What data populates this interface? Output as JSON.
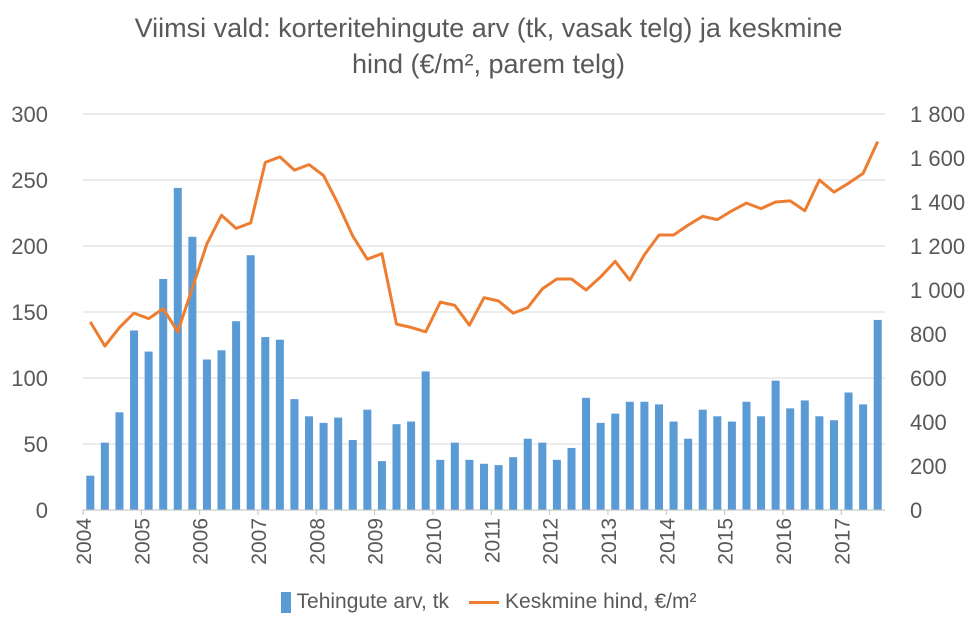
{
  "chart_data": {
    "type": "bar+line",
    "title_line1": "Viimsi vald: korteritehingute arv (tk, vasak telg) ja keskmine",
    "title_line2": "hind (€/m², parem telg)",
    "x_tick_labels": [
      "2004",
      "2005",
      "2006",
      "2007",
      "2008",
      "2009",
      "2010",
      "2011",
      "2012",
      "2013",
      "2014",
      "2015",
      "2016",
      "2017"
    ],
    "y_left": {
      "ticks": [
        0,
        50,
        100,
        150,
        200,
        250,
        300
      ],
      "tick_labels": [
        "0",
        "50",
        "100",
        "150",
        "200",
        "250",
        "300"
      ],
      "lim": [
        0,
        300
      ]
    },
    "y_right": {
      "ticks": [
        0,
        200,
        400,
        600,
        800,
        1000,
        1200,
        1400,
        1600,
        1800
      ],
      "tick_labels": [
        "0",
        "200",
        "400",
        "600",
        "800",
        "1 000",
        "1 200",
        "1 400",
        "1 600",
        "1 800"
      ],
      "lim": [
        0,
        1800
      ]
    },
    "quarters_start": "2004 Q1",
    "series": [
      {
        "name": "Tehingute arv, tk",
        "type": "bar",
        "axis": "left",
        "color": "#5b9bd5",
        "values": [
          26,
          51,
          74,
          136,
          120,
          175,
          244,
          207,
          114,
          121,
          143,
          193,
          131,
          129,
          84,
          71,
          66,
          70,
          53,
          76,
          37,
          65,
          67,
          105,
          38,
          51,
          38,
          35,
          34,
          40,
          54,
          51,
          38,
          47,
          85,
          66,
          73,
          82,
          82,
          80,
          67,
          54,
          76,
          71,
          67,
          82,
          71,
          98,
          77,
          83,
          71,
          68,
          89,
          80,
          144
        ]
      },
      {
        "name": "Keskmine hind, €/m²",
        "type": "line",
        "axis": "right",
        "color": "#ed7d31",
        "values": [
          855,
          745,
          830,
          895,
          870,
          915,
          810,
          1010,
          1210,
          1340,
          1280,
          1305,
          1580,
          1605,
          1545,
          1570,
          1520,
          1390,
          1245,
          1140,
          1165,
          845,
          830,
          810,
          945,
          930,
          840,
          965,
          950,
          895,
          920,
          1005,
          1050,
          1050,
          1000,
          1060,
          1130,
          1045,
          1160,
          1250,
          1250,
          1295,
          1335,
          1320,
          1360,
          1395,
          1370,
          1400,
          1405,
          1360,
          1500,
          1445,
          1485,
          1530,
          1675
        ]
      }
    ],
    "legend": {
      "position": "bottom"
    },
    "grid": {
      "horizontal": true,
      "vertical": false
    }
  }
}
